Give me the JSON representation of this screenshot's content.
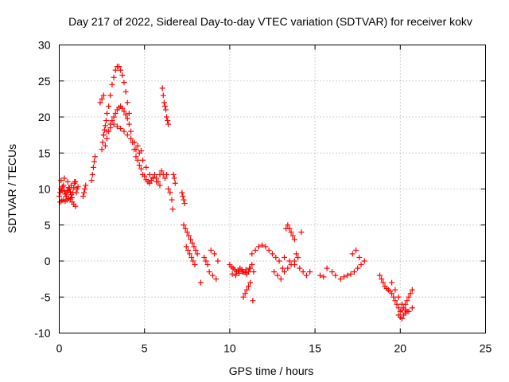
{
  "chart_data": {
    "type": "scatter",
    "title": "Day 217 of 2022, Sidereal Day-to-day VTEC variation (SDTVAR) for receiver kokv",
    "xlabel": "GPS time / hours",
    "ylabel": "SDTVAR / TECUs",
    "xlim": [
      0,
      25
    ],
    "ylim": [
      -10,
      30
    ],
    "xticks": [
      "0",
      "5",
      "10",
      "15",
      "20",
      "25"
    ],
    "yticks": [
      "-10",
      "-5",
      "0",
      "5",
      "10",
      "15",
      "20",
      "25",
      "30"
    ],
    "grid": true,
    "marker": "+",
    "series": [
      {
        "name": "SDTVAR",
        "color": "#ff0000",
        "x": [
          0.0,
          0.05,
          0.1,
          0.15,
          0.2,
          0.25,
          0.3,
          0.35,
          0.4,
          0.45,
          0.5,
          0.55,
          0.6,
          0.65,
          0.7,
          0.75,
          0.8,
          0.85,
          0.9,
          0.95,
          0.05,
          0.15,
          0.25,
          0.35,
          0.45,
          0.55,
          0.65,
          0.75,
          0.85,
          0.95,
          0.1,
          0.3,
          0.5,
          0.7,
          0.9,
          1.0,
          1.05,
          1.1,
          1.4,
          1.45,
          1.5,
          1.55,
          1.9,
          1.95,
          2.0,
          2.05,
          2.1,
          2.5,
          2.55,
          2.6,
          2.65,
          2.7,
          2.75,
          2.8,
          2.9,
          3.0,
          3.1,
          3.2,
          3.3,
          3.4,
          3.5,
          3.6,
          3.7,
          3.8,
          3.9,
          4.0,
          4.1,
          2.4,
          2.5,
          2.6,
          2.7,
          2.8,
          2.9,
          3.0,
          3.1,
          3.2,
          3.3,
          3.4,
          3.5,
          3.6,
          3.7,
          3.8,
          3.9,
          4.0,
          4.1,
          4.2,
          2.6,
          2.8,
          3.0,
          3.2,
          3.4,
          3.6,
          3.8,
          4.0,
          4.2,
          4.4,
          4.6,
          4.8,
          4.3,
          4.4,
          4.5,
          4.6,
          4.7,
          4.8,
          4.9,
          5.0,
          5.1,
          5.2,
          5.3,
          5.4,
          5.5,
          5.6,
          5.7,
          5.8,
          5.9,
          6.0,
          6.1,
          6.2,
          6.3,
          6.4,
          4.5,
          4.7,
          4.9,
          5.1,
          5.3,
          5.5,
          5.7,
          5.9,
          6.05,
          6.1,
          6.15,
          6.2,
          6.25,
          6.3,
          6.35,
          6.4,
          6.7,
          6.75,
          6.8,
          6.5,
          6.6,
          6.65,
          7.2,
          7.25,
          7.3,
          7.35,
          7.3,
          7.4,
          7.5,
          7.6,
          7.7,
          7.8,
          7.9,
          8.0,
          8.1,
          7.45,
          7.55,
          7.65,
          7.75,
          7.85,
          7.95,
          8.3,
          8.5,
          8.6,
          8.7,
          8.8,
          9.0,
          9.2,
          8.9,
          9.1,
          9.3,
          10.0,
          10.1,
          10.2,
          10.3,
          10.4,
          10.5,
          10.6,
          10.7,
          10.8,
          10.9,
          11.0,
          11.1,
          11.2,
          11.3,
          11.4,
          10.15,
          10.35,
          10.55,
          10.75,
          10.95,
          11.15,
          11.35,
          10.8,
          10.9,
          11.0,
          11.1,
          11.2,
          11.3,
          11.5,
          11.7,
          11.9,
          12.1,
          12.3,
          12.5,
          12.7,
          12.9,
          13.1,
          12.6,
          12.8,
          13.0,
          13.2,
          13.4,
          13.6,
          13.8,
          14.0,
          14.2,
          13.3,
          13.4,
          13.5,
          13.6,
          13.7,
          13.8,
          13.9,
          13.2,
          13.5,
          13.8,
          14.1,
          14.3,
          14.5,
          14.7,
          15.3,
          15.5,
          15.7,
          16.0,
          16.2,
          16.5,
          16.7,
          16.9,
          17.1,
          17.3,
          17.5,
          17.7,
          17.9,
          17.2,
          17.4,
          17.6,
          18.8,
          18.9,
          19.0,
          19.1,
          19.2,
          19.3,
          19.4,
          19.5,
          19.6,
          19.7,
          19.8,
          19.9,
          20.0,
          20.1,
          20.2,
          20.3,
          20.4,
          20.5,
          20.6,
          20.7,
          19.5,
          19.7,
          19.9,
          20.1,
          20.3,
          20.5,
          20.7,
          19.9,
          20.0,
          20.1,
          20.2,
          20.3,
          20.4
        ],
        "y": [
          9.0,
          9.5,
          10.0,
          9.8,
          10.3,
          10.5,
          9.7,
          9.3,
          9.0,
          9.5,
          9.8,
          10.2,
          10.0,
          9.6,
          9.2,
          8.8,
          9.5,
          10.2,
          10.8,
          11.0,
          8.2,
          8.4,
          8.5,
          8.3,
          8.5,
          8.7,
          8.6,
          8.2,
          7.9,
          7.6,
          11.2,
          11.5,
          11.0,
          10.5,
          11.0,
          9.5,
          10.0,
          10.3,
          9.0,
          9.5,
          10.0,
          10.5,
          11.2,
          12.0,
          13.0,
          13.8,
          14.5,
          15.5,
          16.5,
          17.5,
          18.2,
          18.8,
          19.5,
          20.5,
          21.5,
          23.0,
          24.5,
          25.5,
          26.5,
          27.0,
          27.0,
          26.5,
          25.8,
          24.8,
          23.5,
          22.0,
          20.5,
          22.0,
          22.5,
          23.0,
          16.0,
          17.0,
          18.0,
          19.0,
          19.5,
          20.0,
          20.5,
          21.0,
          21.3,
          21.5,
          21.2,
          20.8,
          20.3,
          19.8,
          19.0,
          18.0,
          17.5,
          18.0,
          18.5,
          19.0,
          18.7,
          18.4,
          18.0,
          17.5,
          17.0,
          16.5,
          16.0,
          15.3,
          16.5,
          15.5,
          14.5,
          14.0,
          13.3,
          12.8,
          12.0,
          11.8,
          11.3,
          11.0,
          10.8,
          11.2,
          11.6,
          12.0,
          11.5,
          11.0,
          12.0,
          12.5,
          12.0,
          11.5,
          12.0,
          10.0,
          15.5,
          15.0,
          14.0,
          13.0,
          12.0,
          11.5,
          11.0,
          10.5,
          24.0,
          23.0,
          22.0,
          21.5,
          21.0,
          20.0,
          19.5,
          19.0,
          12.0,
          11.5,
          10.8,
          9.5,
          8.5,
          7.2,
          9.5,
          9.0,
          8.5,
          8.0,
          5.0,
          4.5,
          4.0,
          3.5,
          3.0,
          2.5,
          2.0,
          1.5,
          1.0,
          2.0,
          1.5,
          1.0,
          0.5,
          0.0,
          -0.5,
          -3.0,
          0.5,
          0.0,
          -0.5,
          -1.5,
          -2.0,
          -2.5,
          1.5,
          1.0,
          0.0,
          -0.5,
          -0.8,
          -1.0,
          -1.2,
          -1.5,
          -1.3,
          -1.0,
          -1.2,
          -1.5,
          -1.6,
          -1.8,
          -1.5,
          -1.0,
          -0.5,
          -1.5,
          -1.8,
          -2.0,
          -1.7,
          -1.5,
          -1.2,
          -1.0,
          -5.5,
          -5.0,
          -4.5,
          -4.0,
          -3.5,
          -3.0,
          1.0,
          1.5,
          2.0,
          2.2,
          2.0,
          1.5,
          1.0,
          0.5,
          0.0,
          -1.0,
          -1.5,
          -2.0,
          -2.5,
          -1.5,
          -1.0,
          -0.5,
          0.0,
          0.5,
          4.0,
          4.5,
          5.0,
          4.5,
          4.0,
          3.5,
          3.0,
          1.0,
          0.5,
          0.0,
          -0.5,
          -1.0,
          -1.5,
          -2.0,
          -1.5,
          -2.0,
          -2.2,
          -1.0,
          -1.5,
          -2.0,
          -2.5,
          -2.2,
          -2.0,
          -1.8,
          -1.5,
          -1.0,
          -0.5,
          0.0,
          1.0,
          1.5,
          0.5,
          -2.0,
          -2.5,
          -3.0,
          -3.5,
          -3.8,
          -4.0,
          -4.2,
          -4.5,
          -5.0,
          -5.5,
          -6.0,
          -6.5,
          -7.0,
          -6.8,
          -6.5,
          -6.0,
          -5.5,
          -5.0,
          -4.5,
          -4.0,
          -3.0,
          -4.0,
          -5.0,
          -6.0,
          -6.8,
          -7.0,
          -6.5,
          -7.5,
          -7.8,
          -8.0,
          -7.5,
          -7.2,
          -7.0
        ]
      }
    ]
  }
}
